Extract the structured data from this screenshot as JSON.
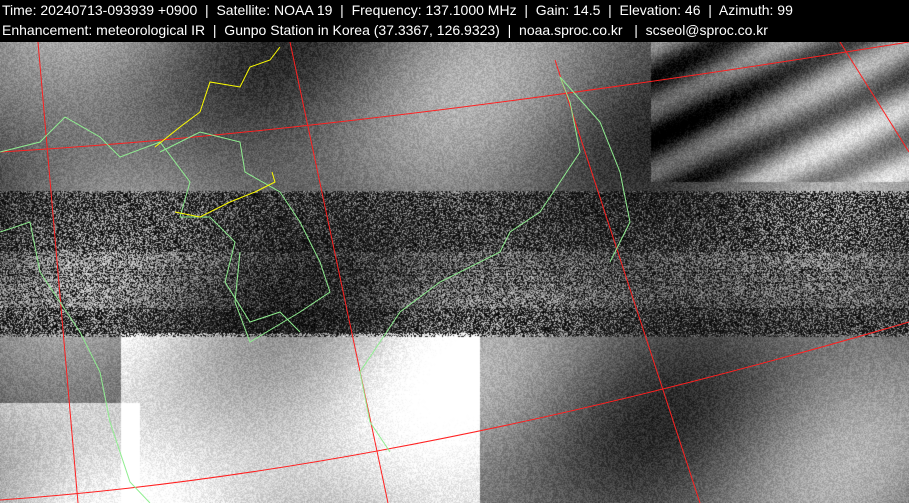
{
  "header": {
    "line1": "Time: 20240713-093939 +0900  |  Satellite: NOAA 19  |  Frequency: 137.1000 MHz  |  Gain: 14.5  |  Elevation: 46  |  Azimuth: 99",
    "line2": "Enhancement: meteorological IR  |  Gunpo Station in Korea (37.3367, 126.9323)  |  noaa.sproc.co.kr   |  scseol@sproc.co.kr"
  },
  "image": {
    "enhancement": "meteorological IR",
    "grid_color": "#ff2020",
    "coastline_color": "#90ee90",
    "border_color": "#ffff00"
  }
}
